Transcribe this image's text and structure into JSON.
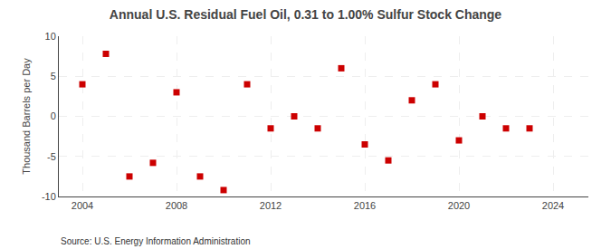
{
  "chart_data": {
    "type": "scatter",
    "title": "Annual U.S. Residual Fuel Oil, 0.31 to 1.00% Sulfur Stock Change",
    "y_label": "Thousand Barrels per Day",
    "annotations": [
      "Source: U.S. Energy Information Administration"
    ],
    "x": [
      2004,
      2005,
      2006,
      2007,
      2008,
      2009,
      2010,
      2011,
      2012,
      2013,
      2014,
      2015,
      2016,
      2017,
      2018,
      2019,
      2020,
      2021,
      2022,
      2023
    ],
    "values": [
      4.0,
      7.8,
      -7.5,
      -5.8,
      3.0,
      -7.5,
      -9.2,
      4.0,
      -1.5,
      0.0,
      -1.5,
      6.0,
      -3.5,
      -5.5,
      2.0,
      4.0,
      -3.0,
      0.0,
      -1.5,
      -1.5
    ],
    "color": "#cc0000",
    "marker": "square",
    "xlim": [
      2003.0,
      2025.5
    ],
    "xticks": [
      2004,
      2008,
      2012,
      2016,
      2020,
      2024
    ],
    "ylim": [
      -10,
      10
    ],
    "yticks": [
      -10,
      -5,
      0,
      5,
      10
    ],
    "grid": true
  }
}
